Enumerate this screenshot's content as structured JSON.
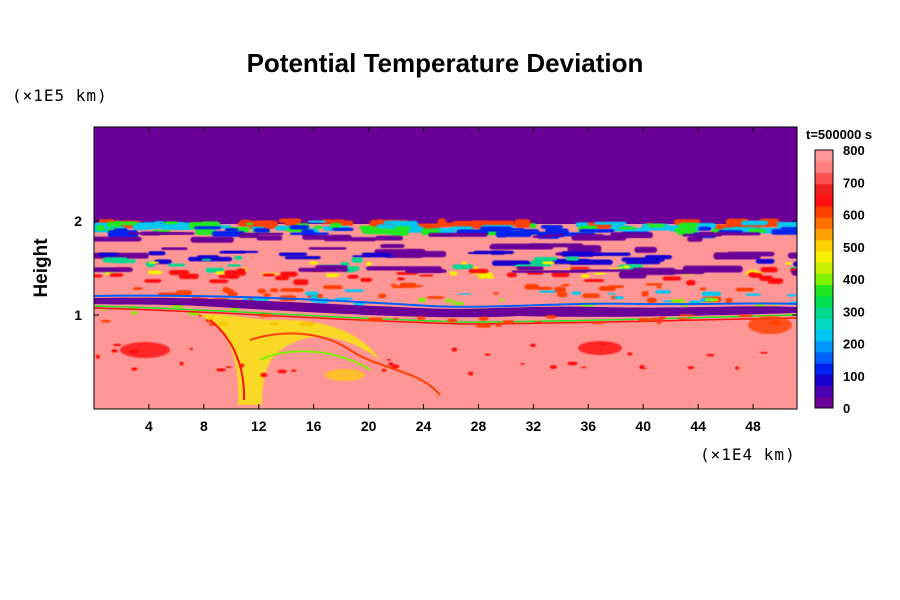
{
  "chart_data": {
    "type": "heatmap",
    "title": "Potential Temperature Deviation",
    "ylabel": "Height",
    "xlabel": "",
    "x_unit": "(×1E4 km)",
    "y_unit": "(×1E5 km)",
    "time_label": "t=500000 s",
    "xlim": [
      0,
      51.2
    ],
    "ylim": [
      0,
      3.0
    ],
    "x_ticks": [
      "4",
      "8",
      "12",
      "16",
      "20",
      "24",
      "28",
      "32",
      "36",
      "40",
      "44",
      "48"
    ],
    "x_tick_values": [
      4,
      8,
      12,
      16,
      20,
      24,
      28,
      32,
      36,
      40,
      44,
      48
    ],
    "y_ticks": [
      "1",
      "2"
    ],
    "y_tick_values": [
      1,
      2
    ],
    "colorbar": {
      "min": 0,
      "max": 800,
      "tick_labels": [
        "0",
        "100",
        "200",
        "300",
        "400",
        "500",
        "600",
        "700",
        "800"
      ],
      "tick_values": [
        0,
        100,
        200,
        300,
        400,
        500,
        600,
        700,
        800
      ],
      "colors": [
        "#6a0097",
        "#4b00b4",
        "#1800d0",
        "#0020f0",
        "#0060ff",
        "#0098ff",
        "#00c8f0",
        "#00d8c0",
        "#00d890",
        "#00e050",
        "#20e820",
        "#80f000",
        "#c8f000",
        "#f8f000",
        "#ffd000",
        "#ffa000",
        "#ff7000",
        "#ff4000",
        "#ff1010",
        "#f02020",
        "#ff5050",
        "#ff8080",
        "#ff9696"
      ]
    },
    "regions": [
      {
        "name": "upper uniform layer",
        "value": 0,
        "y_range": [
          1.95,
          3.0
        ]
      },
      {
        "name": "turbulent mixing band",
        "value_range": [
          0,
          800
        ],
        "y_range": [
          1.0,
          1.95
        ]
      },
      {
        "name": "lower layer with plumes",
        "value": 800,
        "y_range": [
          0,
          1.0
        ]
      }
    ]
  }
}
